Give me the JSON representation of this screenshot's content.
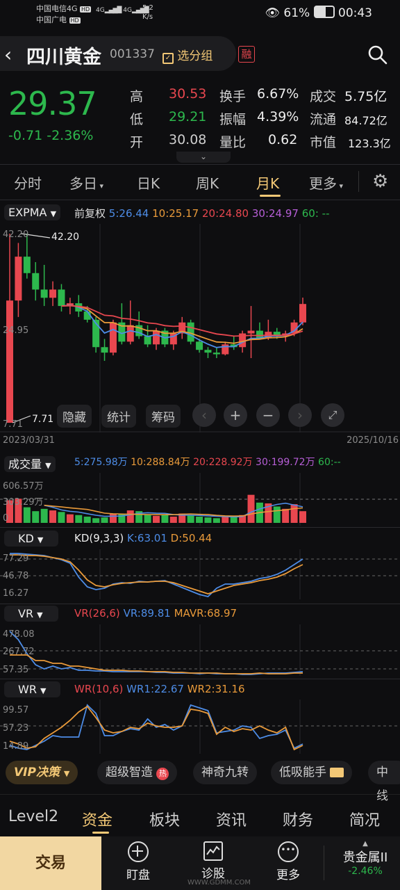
{
  "status": {
    "carrier1": "中国电信4G",
    "carrier2": "中国广电",
    "hd": "HD",
    "net1": "4G",
    "net2": "4G",
    "speed_value": "5.2",
    "speed_unit": "K/s",
    "battery": "61%",
    "time": "00:43"
  },
  "header": {
    "title": "四川黄金",
    "code": "001337",
    "watch_label": "选分组",
    "margin_badge": "融"
  },
  "quote": {
    "price": "29.37",
    "change": "-0.71",
    "change_pct": "-2.36%",
    "high_label": "高",
    "high": "30.53",
    "low_label": "低",
    "low": "29.21",
    "open_label": "开",
    "open": "30.08",
    "turnover_label": "换手",
    "turnover": "6.67%",
    "amplitude_label": "振幅",
    "amplitude": "4.39%",
    "vol_ratio_label": "量比",
    "vol_ratio": "0.62",
    "deal_label": "成交",
    "deal": "5.75亿",
    "float_label": "流通",
    "float": "84.72亿",
    "mcap_label": "市值",
    "mcap": "123.3亿"
  },
  "tabs": [
    "分时",
    "多日",
    "日K",
    "周K",
    "月K",
    "更多"
  ],
  "active_tab": "月K",
  "main_chart": {
    "indicator": "EXPMA",
    "adjust": "前复权",
    "ma5": "5:26.44",
    "ma10": "10:25.17",
    "ma20": "20:24.80",
    "ma30": "30:24.97",
    "ma60": "60: --",
    "y_high": "42.20",
    "y_mid": "24.95",
    "y_low": "7.71",
    "max_marker": "42.20",
    "min_marker": "7.71",
    "date_start": "2023/03/31",
    "date_end": "2025/10/16",
    "btn_hide": "隐藏",
    "btn_stats": "统计",
    "btn_chips": "筹码"
  },
  "volume_panel": {
    "label": "成交量",
    "ma5": "5:275.98万",
    "ma10": "10:288.84万",
    "ma20": "20:228.92万",
    "ma30": "30:199.72万",
    "ma60": "60:--",
    "y_top": "606.57万",
    "y_mid": "303.29万",
    "y_bottom": "0"
  },
  "kd_panel": {
    "label": "KD",
    "params": "KD(9,3,3)",
    "k": "K:63.01",
    "d": "D:50.44",
    "y1": "77.29",
    "y2": "46.78",
    "y3": "16.27"
  },
  "vr_panel": {
    "label": "VR",
    "params": "VR(26,6)",
    "vr": "VR:89.81",
    "mavr": "MAVR:68.97",
    "y1": "478.08",
    "y2": "267.72",
    "y3": "57.35"
  },
  "wr_panel": {
    "label": "WR",
    "params": "WR(10,6)",
    "wr1": "WR1:22.67",
    "wr2": "WR2:31.16",
    "y1": "99.57",
    "y2": "57.23",
    "y3": "14.89"
  },
  "chips": [
    "VIP决策",
    "超级智造",
    "神奇九转",
    "低吸能手",
    "中线"
  ],
  "bottom_tabs": [
    "Level2",
    "资金",
    "板块",
    "资讯",
    "财务",
    "简况"
  ],
  "active_bottom_tab": "资金",
  "action_bar": {
    "trade": "交易",
    "watch": "盯盘",
    "diagnose": "诊股",
    "more": "更多",
    "sector_name": "贵金属II",
    "sector_change": "-2.46%"
  },
  "watermark": "WWW.GDMM.COM",
  "colors": {
    "up": "#e8474f",
    "down": "#2db84d",
    "ma5": "#4d8ce6",
    "ma10": "#e99a3a",
    "ma20": "#e8474f",
    "ma30": "#b65ed6",
    "gold": "#f3c876"
  },
  "chart_data": {
    "type": "candlestick",
    "y_range": [
      7.71,
      42.2
    ],
    "candles_ohlc": [
      [
        7.71,
        42.2,
        7.71,
        30.0
      ],
      [
        30.0,
        40.5,
        27.0,
        38.0
      ],
      [
        38.0,
        42.2,
        34.0,
        35.0
      ],
      [
        35.0,
        37.0,
        30.0,
        32.0
      ],
      [
        32.0,
        36.5,
        29.0,
        30.5
      ],
      [
        30.5,
        33.5,
        29.0,
        32.0
      ],
      [
        32.0,
        33.0,
        28.0,
        29.0
      ],
      [
        29.0,
        30.5,
        27.5,
        29.5
      ],
      [
        29.5,
        31.0,
        27.0,
        28.0
      ],
      [
        28.0,
        29.0,
        26.0,
        26.5
      ],
      [
        26.5,
        27.0,
        20.5,
        21.5
      ],
      [
        21.5,
        23.0,
        19.0,
        20.5
      ],
      [
        20.5,
        26.5,
        20.0,
        26.0
      ],
      [
        26.0,
        29.5,
        22.0,
        22.5
      ],
      [
        22.5,
        30.0,
        22.0,
        25.5
      ],
      [
        25.5,
        28.0,
        23.0,
        23.5
      ],
      [
        23.5,
        25.5,
        21.5,
        22.0
      ],
      [
        22.0,
        25.0,
        21.0,
        24.5
      ],
      [
        24.5,
        25.0,
        21.5,
        22.0
      ],
      [
        22.0,
        24.5,
        21.0,
        24.0
      ],
      [
        24.0,
        27.0,
        23.0,
        26.0
      ],
      [
        26.0,
        26.5,
        22.0,
        22.5
      ],
      [
        22.5,
        23.0,
        20.5,
        21.0
      ],
      [
        21.0,
        21.5,
        19.5,
        20.5
      ],
      [
        20.5,
        21.5,
        19.5,
        20.2
      ],
      [
        20.2,
        22.5,
        20.0,
        22.0
      ],
      [
        22.0,
        23.5,
        21.0,
        21.5
      ],
      [
        21.5,
        24.5,
        20.5,
        24.0
      ],
      [
        24.0,
        29.0,
        19.5,
        24.5
      ],
      [
        24.5,
        26.0,
        23.0,
        23.2
      ],
      [
        23.2,
        26.5,
        22.8,
        24.3
      ],
      [
        24.3,
        25.0,
        23.0,
        23.5
      ],
      [
        23.5,
        24.5,
        22.5,
        24.0
      ],
      [
        24.0,
        26.5,
        23.5,
        26.0
      ],
      [
        26.0,
        30.53,
        25.5,
        29.37
      ]
    ]
  }
}
